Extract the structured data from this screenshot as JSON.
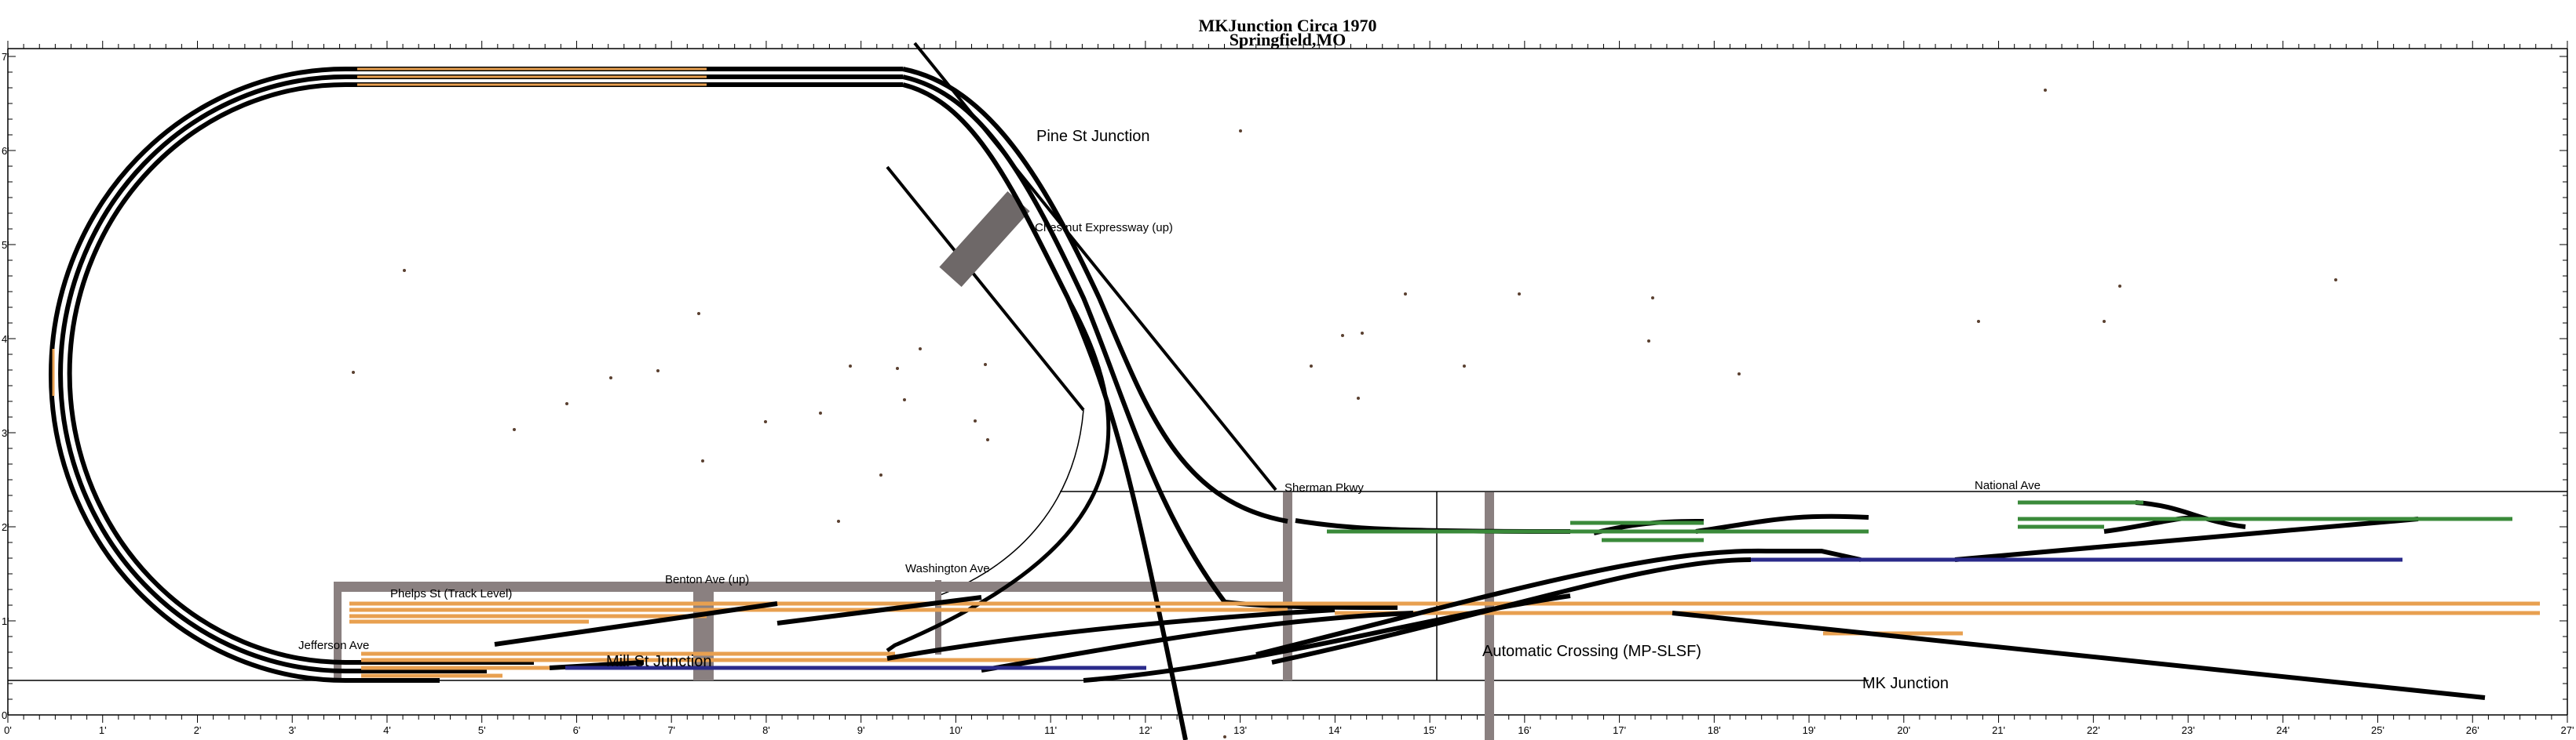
{
  "title": {
    "line1": "MKJunction Circa 1970",
    "line2": "Springfield,MO"
  },
  "ruler": {
    "x_unit": "ft",
    "x_range": [
      0,
      27
    ],
    "y_unit": "ft",
    "y_range": [
      0,
      7
    ],
    "x_labels": [
      "0'",
      "1'",
      "2'",
      "3'",
      "4'",
      "5'",
      "6'",
      "7'",
      "8'",
      "9'",
      "10'",
      "11'",
      "12'",
      "13'",
      "14'",
      "15'",
      "16'",
      "17'",
      "18'",
      "19'",
      "20'",
      "21'",
      "22'",
      "23'",
      "24'",
      "25'",
      "26'",
      "27'"
    ],
    "y_labels": [
      "0'",
      "1'",
      "2'",
      "3'",
      "4'",
      "5'",
      "6'",
      "7'"
    ]
  },
  "labels": {
    "pine_st": "Pine St Junction",
    "chestnut": "Chestnut Expressway (up)",
    "sherman": "Sherman Pkwy",
    "national": "National Ave",
    "phelps": "Phelps St (Track Level)",
    "benton": "Benton Ave (up)",
    "washington": "Washington Ave",
    "jefferson": "Jefferson Ave",
    "mill_st": "Mill St Junction",
    "auto_crossing": "Automatic Crossing (MP-SLSF)",
    "mk_junction": "MK Junction"
  },
  "colors": {
    "mainline": "#000000",
    "orange_track": "#e8a050",
    "green_track": "#3a8a3a",
    "blue_track": "#2a2a8a",
    "road": "#8a8080",
    "bridge": "#6e6868"
  }
}
